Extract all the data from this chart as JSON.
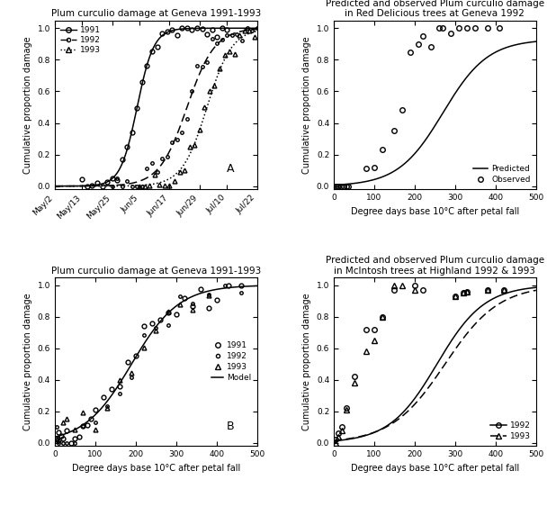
{
  "title_A": "Plum curculio damage at Geneva 1991-1993",
  "title_B": "Plum curculio damage at Geneva 1991-1993",
  "title_C1": "Predicted and observed Plum curculio damage",
  "title_C2": "in Red Delicious trees at Geneva 1992",
  "title_D1": "Predicted and observed Plum curculio damage",
  "title_D2": "in McIntosh trees at Highland 1992 & 1993",
  "ylabel_left": "Cumulative proportion damage",
  "ylabel_right": "Cumulative proportion damage",
  "xlabel_bottom": "Degree days base 10°C after petal fall",
  "xticks_A": [
    "May/2",
    "May/13",
    "May/25",
    "Jun/5",
    "Jun/17",
    "Jun/29",
    "Jul/10",
    "Jul/22"
  ],
  "xtick_days_A": [
    122,
    133,
    145,
    156,
    168,
    180,
    191,
    203
  ],
  "fontsize_title": 7.5,
  "fontsize_label": 7,
  "fontsize_tick": 6.5,
  "fontsize_legend": 6.5,
  "panel_C_obs_x": [
    5,
    8,
    12,
    18,
    25,
    30,
    35,
    80,
    100,
    120,
    150,
    170,
    190,
    210,
    220,
    240,
    260,
    270,
    290,
    310,
    330,
    350,
    380,
    410
  ],
  "panel_C_obs_y": [
    0,
    0,
    0,
    0,
    0,
    0,
    0,
    0.11,
    0.12,
    0.23,
    0.35,
    0.48,
    0.85,
    0.9,
    0.95,
    0.88,
    1.0,
    1.0,
    0.97,
    1.0,
    1.0,
    1.0,
    1.0,
    1.0
  ],
  "panel_D_obs_1992_x": [
    5,
    10,
    20,
    30,
    50,
    80,
    100,
    120,
    150,
    200,
    220,
    300,
    320,
    330,
    380,
    420
  ],
  "panel_D_obs_1992_y": [
    0.02,
    0.06,
    0.1,
    0.22,
    0.42,
    0.72,
    0.72,
    0.8,
    0.97,
    1.0,
    0.97,
    0.93,
    0.95,
    0.96,
    0.97,
    0.97
  ],
  "panel_D_obs_1993_x": [
    5,
    10,
    20,
    30,
    50,
    80,
    100,
    120,
    150,
    170,
    200,
    300,
    320,
    330,
    380,
    420
  ],
  "panel_D_obs_1993_y": [
    0,
    0.04,
    0.08,
    0.21,
    0.38,
    0.58,
    0.65,
    0.8,
    1.0,
    1.0,
    0.97,
    0.93,
    0.95,
    0.96,
    0.97,
    0.97
  ]
}
